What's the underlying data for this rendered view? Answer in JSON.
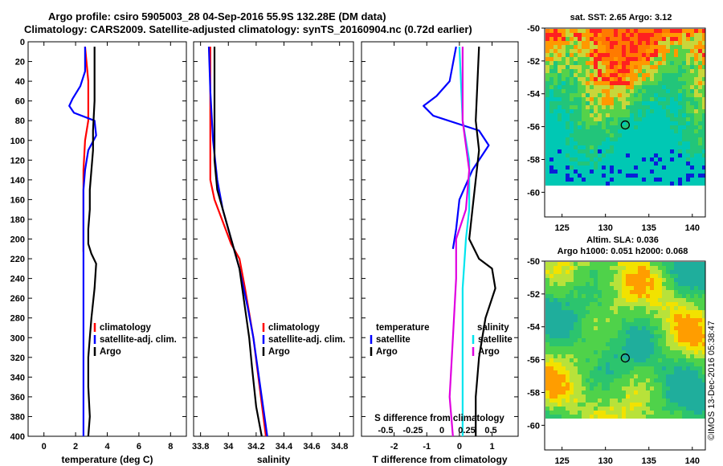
{
  "title_line1": "Argo profile: csiro 5905003_28 04-Sep-2016 55.9S 132.28E (DM data)",
  "title_line2": "Climatology: CARS2009. Satellite-adjusted climatology: synTS_20160904.nc (0.72d earlier)",
  "credit": "©IMOS 13-Dec-2016 05:38:47",
  "colors": {
    "climatology": "#ff0000",
    "satellite": "#0000ff",
    "argo": "#000000",
    "s_satellite": "#00e5ee",
    "s_argo": "#e000e0"
  },
  "chart_data": [
    {
      "id": "temperature",
      "type": "line",
      "xlabel": "temperature (deg C)",
      "xlim": [
        -1,
        9
      ],
      "ylim": [
        0,
        400
      ],
      "xticks": [
        0,
        2,
        4,
        6,
        8
      ],
      "yticks": [
        0,
        20,
        40,
        60,
        80,
        100,
        120,
        140,
        160,
        180,
        200,
        220,
        240,
        260,
        280,
        300,
        320,
        340,
        360,
        380,
        400
      ],
      "legend": [
        "climatology",
        "satellite-adj. clim.",
        "Argo"
      ],
      "series": [
        {
          "name": "climatology",
          "color": "#ff0000",
          "points": [
            [
              2.6,
              5
            ],
            [
              2.8,
              40
            ],
            [
              2.8,
              80
            ],
            [
              2.6,
              100
            ],
            [
              2.5,
              130
            ],
            [
              2.5,
              160
            ],
            [
              2.5,
              213
            ]
          ]
        },
        {
          "name": "satellite-adj. clim.",
          "color": "#0000ff",
          "points": [
            [
              2.6,
              5
            ],
            [
              2.6,
              30
            ],
            [
              2.3,
              45
            ],
            [
              1.8,
              58
            ],
            [
              1.6,
              65
            ],
            [
              1.9,
              72
            ],
            [
              3.2,
              80
            ],
            [
              3.3,
              95
            ],
            [
              2.8,
              110
            ],
            [
              2.6,
              130
            ],
            [
              2.5,
              150
            ],
            [
              2.5,
              170
            ],
            [
              2.5,
              200
            ],
            [
              2.5,
              250
            ],
            [
              2.5,
              300
            ],
            [
              2.5,
              350
            ],
            [
              2.5,
              400
            ]
          ]
        },
        {
          "name": "Argo",
          "color": "#000000",
          "points": [
            [
              3.2,
              5
            ],
            [
              3.2,
              60
            ],
            [
              3.1,
              90
            ],
            [
              3.1,
              110
            ],
            [
              3.0,
              130
            ],
            [
              2.9,
              150
            ],
            [
              2.9,
              170
            ],
            [
              2.8,
              190
            ],
            [
              2.8,
              205
            ],
            [
              3.0,
              215
            ],
            [
              3.3,
              225
            ],
            [
              3.2,
              250
            ],
            [
              3.0,
              280
            ],
            [
              2.9,
              300
            ],
            [
              2.8,
              320
            ],
            [
              2.8,
              350
            ],
            [
              2.9,
              380
            ],
            [
              2.8,
              400
            ]
          ]
        }
      ]
    },
    {
      "id": "salinity",
      "type": "line",
      "xlabel": "salinity",
      "xlim": [
        33.75,
        34.9
      ],
      "ylim": [
        0,
        400
      ],
      "xticks": [
        33.8,
        34.0,
        34.2,
        34.4,
        34.6,
        34.8
      ],
      "xticklabels": [
        "33.8",
        "34",
        "34.2",
        "34.4",
        "34.6",
        "34.8"
      ],
      "legend": [
        "climatology",
        "satellite-adj. clim.",
        "Argo"
      ],
      "series": [
        {
          "name": "climatology",
          "color": "#ff0000",
          "points": [
            [
              33.87,
              5
            ],
            [
              33.87,
              100
            ],
            [
              33.87,
              140
            ],
            [
              33.9,
              160
            ],
            [
              33.94,
              175
            ],
            [
              33.98,
              190
            ],
            [
              34.02,
              205
            ],
            [
              34.08,
              220
            ],
            [
              34.12,
              250
            ],
            [
              34.18,
              300
            ],
            [
              34.27,
              400
            ]
          ]
        },
        {
          "name": "satellite-adj. clim.",
          "color": "#0000ff",
          "points": [
            [
              33.86,
              5
            ],
            [
              33.87,
              50
            ],
            [
              33.89,
              100
            ],
            [
              33.92,
              140
            ],
            [
              33.96,
              170
            ],
            [
              34.02,
              200
            ],
            [
              34.08,
              230
            ],
            [
              34.14,
              270
            ],
            [
              34.18,
              300
            ],
            [
              34.28,
              400
            ]
          ]
        },
        {
          "name": "Argo",
          "color": "#000000",
          "points": [
            [
              33.9,
              5
            ],
            [
              33.9,
              80
            ],
            [
              33.9,
              120
            ],
            [
              33.92,
              150
            ],
            [
              33.98,
              180
            ],
            [
              34.04,
              210
            ],
            [
              34.08,
              230
            ],
            [
              34.12,
              270
            ],
            [
              34.15,
              300
            ],
            [
              34.17,
              330
            ],
            [
              34.2,
              370
            ],
            [
              34.24,
              400
            ]
          ]
        }
      ]
    },
    {
      "id": "difference",
      "type": "line",
      "xlabel": "T difference from climatology",
      "xlabel_top": "S difference from climatology",
      "xlim": [
        -3,
        1.8
      ],
      "ylim": [
        0,
        400
      ],
      "xticks": [
        -2,
        -1,
        0,
        1
      ],
      "top_ticks": [
        -0.5,
        -0.25,
        0,
        0.25,
        0.5
      ],
      "top_ticklabels": [
        "-0.5",
        "-0.25",
        "0",
        "0.25",
        "0.5"
      ],
      "legend_left_title": "temperature",
      "legend_right_title": "salinity",
      "legend_left": [
        "satellite",
        "Argo"
      ],
      "legend_right": [
        "satellite",
        "Argo"
      ],
      "series": [
        {
          "name": "T satellite",
          "color": "#0000ff",
          "points": [
            [
              -0.1,
              5
            ],
            [
              -0.3,
              40
            ],
            [
              -0.7,
              55
            ],
            [
              -1.1,
              65
            ],
            [
              -0.8,
              75
            ],
            [
              0.6,
              90
            ],
            [
              0.9,
              105
            ],
            [
              0.4,
              130
            ],
            [
              0.0,
              160
            ],
            [
              -0.1,
              190
            ],
            [
              -0.2,
              210
            ]
          ]
        },
        {
          "name": "T Argo",
          "color": "#000000",
          "points": [
            [
              0.6,
              5
            ],
            [
              0.5,
              80
            ],
            [
              0.6,
              110
            ],
            [
              0.5,
              140
            ],
            [
              0.4,
              170
            ],
            [
              0.3,
              200
            ],
            [
              0.6,
              220
            ],
            [
              1.0,
              230
            ],
            [
              1.1,
              250
            ],
            [
              0.8,
              280
            ],
            [
              0.6,
              320
            ],
            [
              0.5,
              360
            ],
            [
              0.5,
              400
            ]
          ]
        },
        {
          "name": "S satellite",
          "color": "#00e5ee",
          "points": [
            [
              0.0,
              5
            ],
            [
              0.1,
              80
            ],
            [
              0.3,
              120
            ],
            [
              0.3,
              170
            ],
            [
              0.2,
              200
            ],
            [
              0.1,
              250
            ],
            [
              0.1,
              320
            ],
            [
              0.1,
              400
            ]
          ]
        },
        {
          "name": "S Argo",
          "color": "#e000e0",
          "points": [
            [
              0.1,
              5
            ],
            [
              0.1,
              80
            ],
            [
              0.3,
              130
            ],
            [
              0.2,
              170
            ],
            [
              -0.1,
              200
            ],
            [
              -0.1,
              240
            ],
            [
              -0.2,
              300
            ],
            [
              -0.3,
              360
            ],
            [
              -0.2,
              400
            ]
          ]
        }
      ]
    },
    {
      "id": "sst-map",
      "type": "heatmap",
      "title": "sat. SST: 2.65 Argo: 3.12",
      "xlim": [
        123,
        141.5
      ],
      "ylim": [
        -61.5,
        -50
      ],
      "xticks": [
        125,
        130,
        135,
        140
      ],
      "yticks": [
        -50,
        -52,
        -54,
        -56,
        -58,
        -60
      ],
      "marker": [
        132.28,
        -55.9
      ]
    },
    {
      "id": "sla-map",
      "type": "heatmap",
      "title_line1": "Altim. SLA: 0.036",
      "title_line2": "Argo h1000: 0.051 h2000: 0.068",
      "xlim": [
        123,
        141.5
      ],
      "ylim": [
        -61.5,
        -50
      ],
      "xticks": [
        125,
        130,
        135,
        140
      ],
      "yticks": [
        -50,
        -52,
        -54,
        -56,
        -58,
        -60
      ],
      "marker": [
        132.28,
        -55.9
      ]
    }
  ]
}
